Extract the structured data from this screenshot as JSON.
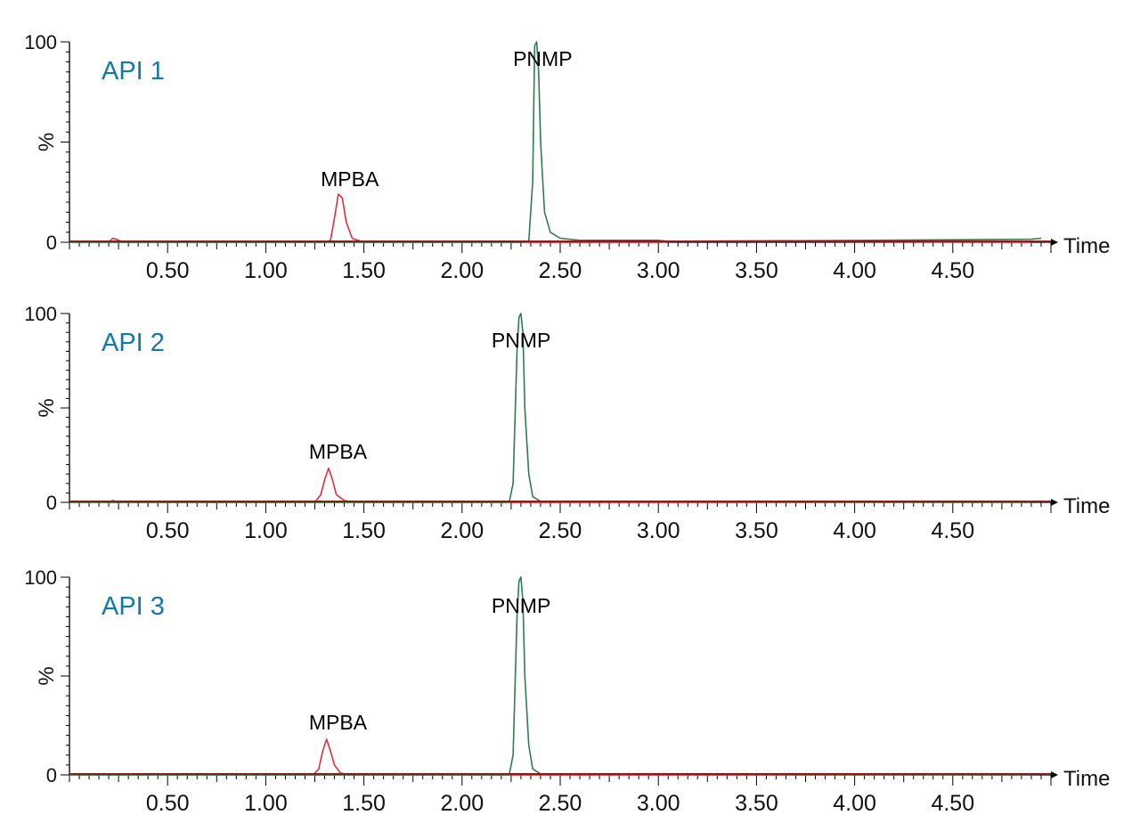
{
  "colors": {
    "panel_title": "#1479a8",
    "red_trace": "#e0303a",
    "green_trace": "#2e7d4f",
    "baseline": "#8b1a1a",
    "axis": "#000000"
  },
  "chart_data": [
    {
      "type": "line",
      "title": "API 1",
      "xlabel": "Time",
      "ylabel": "%",
      "xlim": [
        0,
        5.0
      ],
      "ylim": [
        0,
        100
      ],
      "x_ticks": [
        "0.50",
        "1.00",
        "1.50",
        "2.00",
        "2.50",
        "3.00",
        "3.50",
        "4.00",
        "4.50"
      ],
      "y_ticks": [
        "0",
        "100"
      ],
      "grid": false,
      "annotations": [
        {
          "text": "MPBA",
          "x": 1.28,
          "y": 28
        },
        {
          "text": "PNMP",
          "x": 2.26,
          "y": 88
        }
      ],
      "series": [
        {
          "color": "red",
          "x": [
            0.2,
            0.22,
            0.24,
            0.27,
            1.3,
            1.33,
            1.35,
            1.37,
            1.39,
            1.41,
            1.44,
            1.5,
            3.0,
            3.1,
            3.2,
            4.9
          ],
          "y": [
            0,
            2,
            1.5,
            0,
            0,
            1,
            12,
            24,
            22,
            10,
            2,
            0,
            0,
            0.5,
            0.5,
            0
          ]
        },
        {
          "color": "green",
          "x": [
            0.0,
            2.3,
            2.34,
            2.36,
            2.37,
            2.38,
            2.39,
            2.4,
            2.42,
            2.45,
            2.5,
            2.6,
            3.0,
            3.05,
            4.1,
            4.9,
            4.95
          ],
          "y": [
            0,
            0,
            0.5,
            30,
            98,
            100,
            85,
            50,
            15,
            5,
            2,
            1,
            1,
            0.5,
            1,
            1.5,
            2
          ]
        }
      ]
    },
    {
      "type": "line",
      "title": "API 2",
      "xlabel": "Time",
      "ylabel": "%",
      "xlim": [
        0,
        5.0
      ],
      "ylim": [
        0,
        100
      ],
      "x_ticks": [
        "0.50",
        "1.00",
        "1.50",
        "2.00",
        "2.50",
        "3.00",
        "3.50",
        "4.00",
        "4.50"
      ],
      "y_ticks": [
        "0",
        "100"
      ],
      "grid": false,
      "annotations": [
        {
          "text": "MPBA",
          "x": 1.22,
          "y": 23
        },
        {
          "text": "PNMP",
          "x": 2.15,
          "y": 82
        }
      ],
      "series": [
        {
          "color": "red",
          "x": [
            0.2,
            0.22,
            0.25,
            1.25,
            1.28,
            1.3,
            1.32,
            1.34,
            1.36,
            1.4,
            1.45,
            4.9
          ],
          "y": [
            0,
            1,
            0,
            0,
            4,
            12,
            18,
            12,
            4,
            1,
            0,
            0
          ]
        },
        {
          "color": "green",
          "x": [
            0.0,
            2.24,
            2.26,
            2.28,
            2.29,
            2.3,
            2.31,
            2.32,
            2.34,
            2.36,
            2.4,
            4.9
          ],
          "y": [
            0,
            0,
            10,
            80,
            98,
            100,
            90,
            50,
            15,
            3,
            0.5,
            0
          ]
        }
      ]
    },
    {
      "type": "line",
      "title": "API 3",
      "xlabel": "Time",
      "ylabel": "%",
      "xlim": [
        0,
        5.0
      ],
      "ylim": [
        0,
        100
      ],
      "x_ticks": [
        "0.50",
        "1.00",
        "1.50",
        "2.00",
        "2.50",
        "3.00",
        "3.50",
        "4.00",
        "4.50"
      ],
      "y_ticks": [
        "0",
        "100"
      ],
      "grid": false,
      "annotations": [
        {
          "text": "MPBA",
          "x": 1.22,
          "y": 23
        },
        {
          "text": "PNMP",
          "x": 2.15,
          "y": 82
        }
      ],
      "series": [
        {
          "color": "red",
          "x": [
            1.24,
            1.27,
            1.29,
            1.31,
            1.33,
            1.35,
            1.38,
            1.42,
            4.9
          ],
          "y": [
            0,
            3,
            12,
            18,
            12,
            5,
            1,
            0,
            0
          ]
        },
        {
          "color": "green",
          "x": [
            0.0,
            2.24,
            2.26,
            2.28,
            2.29,
            2.3,
            2.31,
            2.32,
            2.34,
            2.36,
            2.4,
            4.9
          ],
          "y": [
            0,
            0,
            10,
            80,
            98,
            100,
            88,
            50,
            15,
            3,
            0.5,
            0
          ]
        }
      ]
    }
  ]
}
